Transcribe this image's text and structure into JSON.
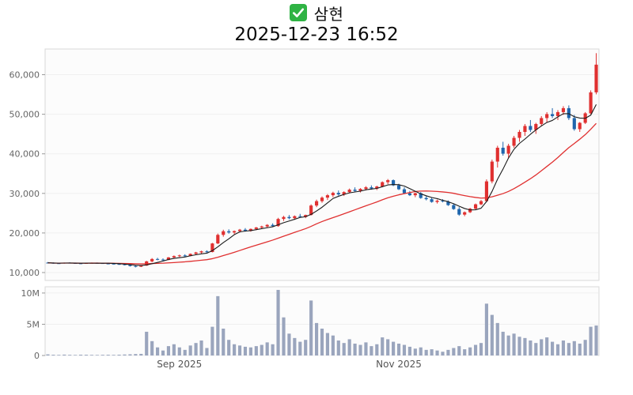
{
  "header": {
    "title": "삼현",
    "timestamp": "2025-12-23 16:52",
    "icon_color": "#2fb344"
  },
  "chart_data": {
    "type": "candlestick",
    "title": "삼현",
    "subtitle": "2025-12-23 16:52",
    "legend_position": "none",
    "grid": "faint-horizontal",
    "price_axis": {
      "min": 8000,
      "max": 66500,
      "ticks": [
        10000,
        20000,
        30000,
        40000,
        50000,
        60000
      ],
      "tick_labels": [
        "10,000",
        "20,000",
        "30,000",
        "40,000",
        "50,000",
        "60,000"
      ]
    },
    "volume_axis": {
      "min": 0,
      "max": 11000000,
      "ticks": [
        0,
        5000000,
        10000000
      ],
      "tick_labels": [
        "0",
        "5M",
        "10M"
      ]
    },
    "x_axis": {
      "labels": [
        {
          "index": 24,
          "label": "Sep 2025"
        },
        {
          "index": 64,
          "label": "Nov 2025"
        }
      ]
    },
    "colors": {
      "up": "#e03030",
      "down": "#1f66ad",
      "ma_fast": "#1a1a1a",
      "ma_slow": "#e03030",
      "volume": "#9aa5bd",
      "axis_text": "#666666",
      "plot_border": "#d9d9d9",
      "plot_bg": "#fcfcfc",
      "gridline": "#f0f0f0"
    },
    "moving_averages": {
      "fast_window": 5,
      "slow_window": 20
    },
    "candles_format": [
      "open",
      "high",
      "low",
      "close",
      "volume"
    ],
    "candles": [
      [
        12500,
        12650,
        12300,
        12450,
        180000
      ],
      [
        12450,
        12550,
        12250,
        12350,
        120000
      ],
      [
        12350,
        12480,
        12200,
        12300,
        100000
      ],
      [
        12300,
        12520,
        12250,
        12480,
        140000
      ],
      [
        12480,
        12580,
        12320,
        12400,
        110000
      ],
      [
        12400,
        12500,
        12260,
        12330,
        90000
      ],
      [
        12330,
        12420,
        12150,
        12250,
        130000
      ],
      [
        12250,
        12430,
        12200,
        12400,
        120000
      ],
      [
        12400,
        12520,
        12300,
        12450,
        100000
      ],
      [
        12450,
        12530,
        12330,
        12380,
        90000
      ],
      [
        12380,
        12460,
        12200,
        12280,
        110000
      ],
      [
        12280,
        12390,
        12150,
        12230,
        120000
      ],
      [
        12230,
        12330,
        12060,
        12160,
        100000
      ],
      [
        12160,
        12260,
        11960,
        12060,
        130000
      ],
      [
        12060,
        12160,
        11820,
        11920,
        160000
      ],
      [
        11920,
        12020,
        11520,
        11640,
        190000
      ],
      [
        11640,
        11780,
        11300,
        11480,
        230000
      ],
      [
        11480,
        11820,
        11380,
        11760,
        260000
      ],
      [
        11760,
        12950,
        11700,
        12820,
        3800000
      ],
      [
        12820,
        13650,
        12600,
        13420,
        2300000
      ],
      [
        13420,
        13720,
        13100,
        13280,
        1300000
      ],
      [
        13280,
        13580,
        13000,
        13180,
        800000
      ],
      [
        13180,
        13920,
        13120,
        13820,
        1500000
      ],
      [
        13820,
        14320,
        13620,
        14160,
        1800000
      ],
      [
        14160,
        14520,
        13920,
        14330,
        1300000
      ],
      [
        14330,
        14620,
        14020,
        14160,
        900000
      ],
      [
        14160,
        14820,
        14100,
        14720,
        1600000
      ],
      [
        14720,
        15230,
        14520,
        15080,
        2000000
      ],
      [
        15080,
        15520,
        14820,
        15360,
        2400000
      ],
      [
        15360,
        15620,
        15020,
        15180,
        1200000
      ],
      [
        15180,
        17480,
        15100,
        17350,
        4600000
      ],
      [
        17350,
        19850,
        17200,
        19520,
        9500000
      ],
      [
        19520,
        20820,
        19050,
        20430,
        4300000
      ],
      [
        20430,
        20920,
        19820,
        20130,
        2500000
      ],
      [
        20130,
        20630,
        19730,
        20470,
        1800000
      ],
      [
        20470,
        21020,
        20120,
        20830,
        1600000
      ],
      [
        20830,
        21230,
        20330,
        20540,
        1400000
      ],
      [
        20540,
        21130,
        20340,
        21020,
        1300000
      ],
      [
        21020,
        21530,
        20720,
        21380,
        1500000
      ],
      [
        21380,
        21830,
        21030,
        21640,
        1700000
      ],
      [
        21640,
        22230,
        21330,
        22040,
        2100000
      ],
      [
        22040,
        22430,
        21530,
        21740,
        1800000
      ],
      [
        21740,
        23830,
        21560,
        23540,
        10500000
      ],
      [
        23540,
        24330,
        23040,
        24040,
        6100000
      ],
      [
        24040,
        24530,
        23440,
        23740,
        3500000
      ],
      [
        23740,
        24430,
        23340,
        24240,
        2800000
      ],
      [
        24240,
        24830,
        23840,
        24040,
        2200000
      ],
      [
        24040,
        24640,
        23740,
        24540,
        2500000
      ],
      [
        24540,
        27230,
        24440,
        26930,
        8800000
      ],
      [
        26930,
        28430,
        26530,
        28040,
        5200000
      ],
      [
        28040,
        29230,
        27640,
        28930,
        4300000
      ],
      [
        28930,
        29830,
        28330,
        29540,
        3600000
      ],
      [
        29540,
        30430,
        29040,
        30140,
        3200000
      ],
      [
        30140,
        30730,
        29440,
        29740,
        2400000
      ],
      [
        29740,
        30530,
        29340,
        30330,
        2000000
      ],
      [
        30330,
        31230,
        30040,
        30940,
        2600000
      ],
      [
        30940,
        31530,
        30340,
        30640,
        1900000
      ],
      [
        30640,
        31330,
        30240,
        31140,
        1700000
      ],
      [
        31140,
        31830,
        30740,
        31540,
        2100000
      ],
      [
        31540,
        32030,
        30940,
        31240,
        1500000
      ],
      [
        31240,
        31930,
        30840,
        31740,
        1800000
      ],
      [
        31740,
        33030,
        31540,
        32840,
        2900000
      ],
      [
        32840,
        33630,
        32340,
        33340,
        2600000
      ],
      [
        33340,
        33530,
        31840,
        32040,
        2200000
      ],
      [
        32040,
        32440,
        30840,
        31040,
        1900000
      ],
      [
        31040,
        31540,
        29840,
        30040,
        1700000
      ],
      [
        30040,
        30640,
        29340,
        29540,
        1400000
      ],
      [
        29540,
        30240,
        29040,
        30040,
        1100000
      ],
      [
        30040,
        30340,
        28640,
        28840,
        1300000
      ],
      [
        28840,
        29440,
        28240,
        28540,
        900000
      ],
      [
        28540,
        28940,
        27640,
        27840,
        1000000
      ],
      [
        27840,
        28440,
        27440,
        28140,
        800000
      ],
      [
        28140,
        28540,
        27740,
        27940,
        600000
      ],
      [
        27940,
        28240,
        26840,
        27040,
        900000
      ],
      [
        27040,
        27440,
        25840,
        26040,
        1200000
      ],
      [
        26040,
        26540,
        24340,
        24640,
        1500000
      ],
      [
        24640,
        25440,
        24240,
        25240,
        1000000
      ],
      [
        25240,
        26340,
        25040,
        26140,
        1300000
      ],
      [
        26140,
        27440,
        25940,
        27240,
        1700000
      ],
      [
        27240,
        28340,
        27040,
        28040,
        2000000
      ],
      [
        28040,
        33540,
        27840,
        33040,
        8300000
      ],
      [
        33040,
        38540,
        32540,
        38040,
        6500000
      ],
      [
        38040,
        42040,
        36540,
        41540,
        5200000
      ],
      [
        41540,
        43040,
        39540,
        40040,
        3800000
      ],
      [
        40040,
        42540,
        39040,
        42040,
        3200000
      ],
      [
        42040,
        44540,
        41540,
        44040,
        3500000
      ],
      [
        44040,
        46040,
        43040,
        45540,
        3000000
      ],
      [
        45540,
        47540,
        44540,
        47040,
        2800000
      ],
      [
        47040,
        48540,
        45540,
        46040,
        2400000
      ],
      [
        46040,
        47840,
        45040,
        47540,
        2000000
      ],
      [
        47540,
        49540,
        47040,
        49040,
        2600000
      ],
      [
        49040,
        50540,
        48040,
        50040,
        2900000
      ],
      [
        50040,
        51540,
        49040,
        49540,
        2200000
      ],
      [
        49540,
        51040,
        48540,
        50540,
        1800000
      ],
      [
        50540,
        52040,
        49840,
        51540,
        2400000
      ],
      [
        51540,
        52240,
        48540,
        49040,
        2000000
      ],
      [
        49040,
        49840,
        45840,
        46240,
        2300000
      ],
      [
        46240,
        48040,
        45540,
        47840,
        1900000
      ],
      [
        47840,
        50540,
        47540,
        50240,
        2500000
      ],
      [
        50240,
        56040,
        50040,
        55540,
        4600000
      ],
      [
        55540,
        65440,
        55040,
        62540,
        4800000
      ]
    ]
  }
}
